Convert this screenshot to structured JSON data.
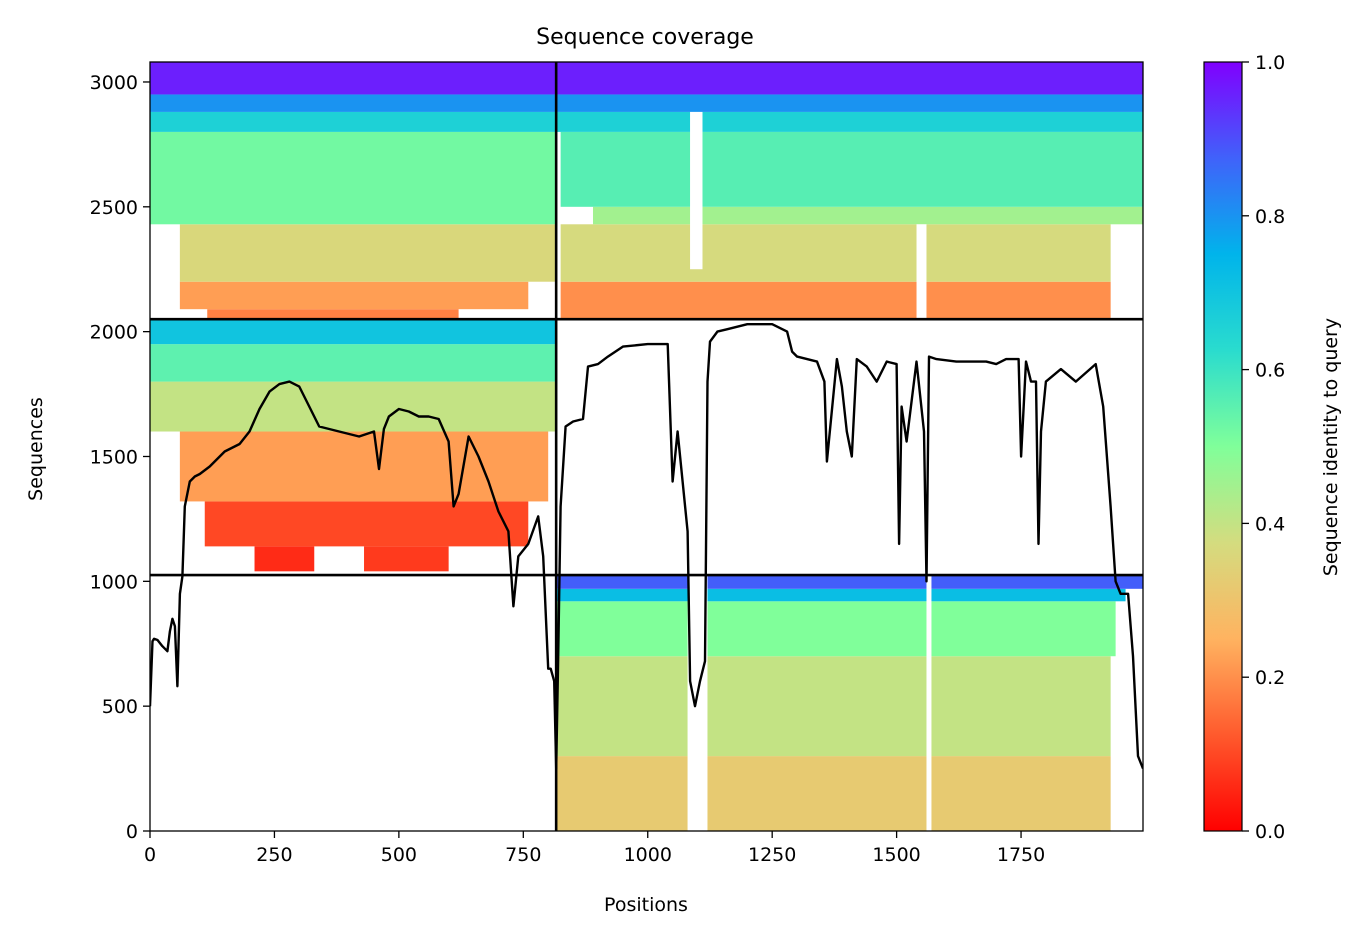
{
  "chart_data": {
    "type": "heatmap",
    "title": "Sequence coverage",
    "xlabel": "Positions",
    "ylabel": "Sequences",
    "xlim": [
      0,
      1995
    ],
    "ylim": [
      0,
      3080
    ],
    "xticks": [
      0,
      250,
      500,
      750,
      1000,
      1250,
      1500,
      1750
    ],
    "yticks": [
      0,
      500,
      1000,
      1500,
      2000,
      2500,
      3000
    ],
    "colormap": "rainbow_r",
    "colorbar": {
      "label": "Sequence identity to query",
      "range": [
        0.0,
        1.0
      ],
      "ticks": [
        0.0,
        0.2,
        0.4,
        0.6,
        0.8,
        1.0
      ],
      "tick_labels": [
        "0.0",
        "0.2",
        "0.4",
        "0.6",
        "0.8",
        "1.0"
      ]
    },
    "segment_boundaries": {
      "x": [
        816
      ],
      "y": [
        1025,
        2050
      ]
    },
    "blocks": [
      {
        "name": "left-upper",
        "x_range": [
          0,
          816
        ],
        "y_range": [
          2050,
          3080
        ],
        "bands": [
          {
            "y": [
              2050,
              2090
            ],
            "x": [
              115,
              620
            ],
            "identity": 0.18
          },
          {
            "y": [
              2090,
              2200
            ],
            "x": [
              60,
              760
            ],
            "identity": 0.22
          },
          {
            "y": [
              2200,
              2430
            ],
            "x": [
              60,
              816
            ],
            "identity": 0.36
          },
          {
            "y": [
              2430,
              2800
            ],
            "x": [
              0,
              816
            ],
            "identity": 0.52
          },
          {
            "y": [
              2800,
              2880
            ],
            "x": [
              0,
              816
            ],
            "identity": 0.66
          },
          {
            "y": [
              2880,
              2950
            ],
            "x": [
              0,
              816
            ],
            "identity": 0.8
          },
          {
            "y": [
              2950,
              3080
            ],
            "x": [
              0,
              816
            ],
            "identity": 0.96
          }
        ]
      },
      {
        "name": "right-upper",
        "x_range": [
          816,
          1995
        ],
        "y_range": [
          2050,
          3080
        ],
        "bands": [
          {
            "y": [
              2050,
              2200
            ],
            "x": [
              825,
              1930
            ],
            "identity": 0.2
          },
          {
            "y": [
              2200,
              2430
            ],
            "x": [
              825,
              1930
            ],
            "identity": 0.37
          },
          {
            "y": [
              2430,
              2500
            ],
            "x": [
              890,
              1995
            ],
            "identity": 0.45
          },
          {
            "y": [
              2500,
              2800
            ],
            "x": [
              825,
              1995
            ],
            "identity": 0.56
          },
          {
            "y": [
              2800,
              2880
            ],
            "x": [
              816,
              1995
            ],
            "identity": 0.66
          },
          {
            "y": [
              2880,
              2950
            ],
            "x": [
              816,
              1995
            ],
            "identity": 0.8
          },
          {
            "y": [
              2950,
              3080
            ],
            "x": [
              816,
              1995
            ],
            "identity": 0.96
          }
        ]
      },
      {
        "name": "left-middle",
        "x_range": [
          0,
          816
        ],
        "y_range": [
          1025,
          2050
        ],
        "bands": [
          {
            "y": [
              1040,
              1140
            ],
            "x": [
              210,
              330
            ],
            "identity": 0.06
          },
          {
            "y": [
              1040,
              1140
            ],
            "x": [
              430,
              600
            ],
            "identity": 0.08
          },
          {
            "y": [
              1140,
              1320
            ],
            "x": [
              110,
              760
            ],
            "identity": 0.1
          },
          {
            "y": [
              1320,
              1600
            ],
            "x": [
              60,
              800
            ],
            "identity": 0.22
          },
          {
            "y": [
              1600,
              1800
            ],
            "x": [
              0,
              816
            ],
            "identity": 0.4
          },
          {
            "y": [
              1800,
              1950
            ],
            "x": [
              0,
              816
            ],
            "identity": 0.55
          },
          {
            "y": [
              1950,
              2050
            ],
            "x": [
              0,
              816
            ],
            "identity": 0.7
          }
        ]
      },
      {
        "name": "right-lower",
        "x_range": [
          816,
          1995
        ],
        "y_range": [
          0,
          1025
        ],
        "bands": [
          {
            "y": [
              0,
              300
            ],
            "x": [
              816,
              1930
            ],
            "identity": 0.32
          },
          {
            "y": [
              300,
              700
            ],
            "x": [
              816,
              1930
            ],
            "identity": 0.4
          },
          {
            "y": [
              700,
              920
            ],
            "x": [
              816,
              1940
            ],
            "identity": 0.5
          },
          {
            "y": [
              920,
              970
            ],
            "x": [
              816,
              1960
            ],
            "identity": 0.72
          },
          {
            "y": [
              970,
              1025
            ],
            "x": [
              816,
              1995
            ],
            "identity": 0.88
          }
        ]
      }
    ],
    "gaps": [
      {
        "x": [
          1080,
          1120
        ],
        "y": [
          0,
          1025
        ]
      },
      {
        "x": [
          1560,
          1570
        ],
        "y": [
          0,
          1025
        ]
      },
      {
        "x": [
          1085,
          1110
        ],
        "y": [
          2250,
          2880
        ]
      },
      {
        "x": [
          1540,
          1560
        ],
        "y": [
          2050,
          2430
        ]
      }
    ],
    "coverage_line": {
      "name": "coverage",
      "x": [
        0,
        5,
        8,
        15,
        25,
        35,
        40,
        45,
        50,
        55,
        60,
        65,
        70,
        80,
        90,
        100,
        120,
        150,
        180,
        200,
        220,
        240,
        260,
        280,
        300,
        320,
        340,
        380,
        420,
        450,
        460,
        470,
        480,
        500,
        520,
        540,
        560,
        580,
        600,
        610,
        620,
        640,
        660,
        680,
        700,
        720,
        730,
        740,
        760,
        780,
        790,
        800,
        805,
        812,
        816,
        820,
        825,
        835,
        850,
        870,
        880,
        900,
        920,
        950,
        1000,
        1020,
        1040,
        1050,
        1060,
        1070,
        1080,
        1085,
        1095,
        1105,
        1115,
        1120,
        1125,
        1140,
        1160,
        1200,
        1250,
        1280,
        1290,
        1300,
        1340,
        1355,
        1360,
        1380,
        1390,
        1400,
        1410,
        1420,
        1440,
        1460,
        1480,
        1500,
        1505,
        1510,
        1520,
        1540,
        1555,
        1560,
        1565,
        1580,
        1620,
        1680,
        1700,
        1720,
        1745,
        1750,
        1760,
        1770,
        1780,
        1785,
        1790,
        1800,
        1830,
        1860,
        1900,
        1915,
        1930,
        1940,
        1950,
        1960,
        1965,
        1975,
        1985,
        1995
      ],
      "y": [
        500,
        760,
        770,
        765,
        740,
        720,
        800,
        850,
        820,
        580,
        950,
        1020,
        1300,
        1400,
        1420,
        1430,
        1460,
        1520,
        1550,
        1600,
        1690,
        1760,
        1790,
        1800,
        1780,
        1700,
        1620,
        1600,
        1580,
        1600,
        1450,
        1610,
        1660,
        1690,
        1680,
        1660,
        1660,
        1650,
        1560,
        1300,
        1350,
        1580,
        1500,
        1400,
        1280,
        1200,
        900,
        1100,
        1150,
        1260,
        1100,
        650,
        650,
        600,
        250,
        700,
        1300,
        1620,
        1640,
        1650,
        1860,
        1870,
        1900,
        1940,
        1950,
        1950,
        1950,
        1400,
        1600,
        1400,
        1200,
        600,
        500,
        600,
        680,
        1800,
        1960,
        2000,
        2010,
        2030,
        2030,
        2000,
        1920,
        1900,
        1880,
        1800,
        1480,
        1890,
        1780,
        1600,
        1500,
        1890,
        1860,
        1800,
        1880,
        1870,
        1150,
        1700,
        1560,
        1880,
        1600,
        1000,
        1900,
        1890,
        1880,
        1880,
        1870,
        1890,
        1890,
        1500,
        1880,
        1800,
        1800,
        1150,
        1600,
        1800,
        1850,
        1800,
        1870,
        1700,
        1300,
        1000,
        950,
        950,
        950,
        700,
        300,
        250,
        250
      ]
    }
  }
}
